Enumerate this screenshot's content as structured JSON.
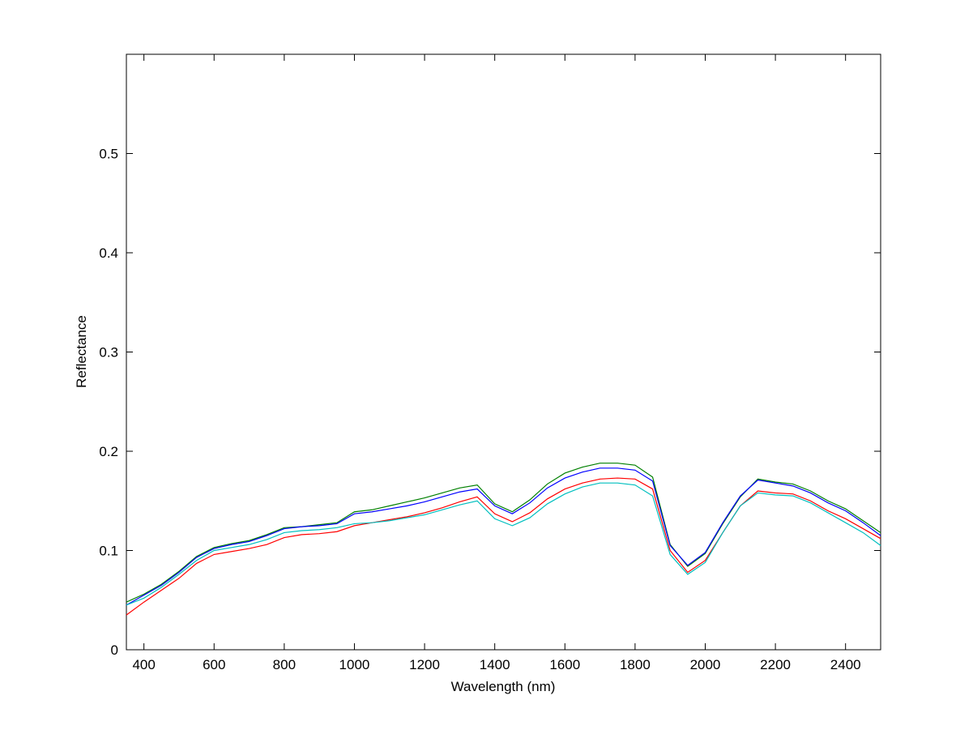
{
  "chart_data": {
    "type": "line",
    "xlabel": "Wavelength (nm)",
    "ylabel": "Reflectance",
    "x": [
      350,
      400,
      450,
      500,
      550,
      600,
      650,
      700,
      750,
      800,
      850,
      900,
      950,
      1000,
      1050,
      1100,
      1150,
      1200,
      1250,
      1300,
      1350,
      1400,
      1450,
      1500,
      1550,
      1600,
      1650,
      1700,
      1750,
      1800,
      1850,
      1900,
      1950,
      2000,
      2050,
      2100,
      2150,
      2200,
      2250,
      2300,
      2350,
      2400,
      2450,
      2500
    ],
    "series": [
      {
        "color": "#008000",
        "values": [
          0.048,
          0.056,
          0.066,
          0.079,
          0.094,
          0.103,
          0.107,
          0.11,
          0.116,
          0.123,
          0.124,
          0.126,
          0.128,
          0.139,
          0.141,
          0.145,
          0.149,
          0.153,
          0.158,
          0.163,
          0.166,
          0.147,
          0.139,
          0.151,
          0.167,
          0.178,
          0.184,
          0.188,
          0.188,
          0.186,
          0.174,
          0.106,
          0.084,
          0.097,
          0.127,
          0.154,
          0.172,
          0.169,
          0.167,
          0.16,
          0.15,
          0.142,
          0.13,
          0.118
        ]
      },
      {
        "color": "#0000ff",
        "values": [
          0.045,
          0.055,
          0.065,
          0.078,
          0.093,
          0.102,
          0.106,
          0.109,
          0.115,
          0.122,
          0.124,
          0.125,
          0.127,
          0.137,
          0.139,
          0.142,
          0.145,
          0.149,
          0.154,
          0.159,
          0.162,
          0.145,
          0.137,
          0.148,
          0.163,
          0.173,
          0.179,
          0.183,
          0.183,
          0.181,
          0.17,
          0.105,
          0.085,
          0.098,
          0.128,
          0.155,
          0.171,
          0.168,
          0.165,
          0.158,
          0.148,
          0.14,
          0.128,
          0.115
        ]
      },
      {
        "color": "#ff0000",
        "values": [
          0.035,
          0.048,
          0.06,
          0.072,
          0.087,
          0.096,
          0.099,
          0.102,
          0.106,
          0.113,
          0.116,
          0.117,
          0.119,
          0.125,
          0.128,
          0.131,
          0.134,
          0.138,
          0.143,
          0.149,
          0.154,
          0.137,
          0.129,
          0.138,
          0.152,
          0.162,
          0.168,
          0.172,
          0.173,
          0.172,
          0.162,
          0.1,
          0.078,
          0.09,
          0.118,
          0.145,
          0.16,
          0.158,
          0.157,
          0.15,
          0.14,
          0.132,
          0.122,
          0.112
        ]
      },
      {
        "color": "#00bfbf",
        "values": [
          0.045,
          0.052,
          0.063,
          0.076,
          0.09,
          0.1,
          0.103,
          0.106,
          0.111,
          0.118,
          0.12,
          0.121,
          0.123,
          0.127,
          0.128,
          0.13,
          0.133,
          0.136,
          0.141,
          0.146,
          0.15,
          0.132,
          0.125,
          0.133,
          0.147,
          0.157,
          0.164,
          0.168,
          0.168,
          0.166,
          0.155,
          0.096,
          0.076,
          0.088,
          0.118,
          0.145,
          0.158,
          0.156,
          0.155,
          0.148,
          0.138,
          0.128,
          0.118,
          0.105
        ]
      }
    ],
    "xlim": [
      350,
      2500
    ],
    "xticks": [
      400,
      600,
      800,
      1000,
      1200,
      1400,
      1600,
      1800,
      2000,
      2200,
      2400
    ],
    "ylim": [
      0,
      0.6
    ],
    "yticks": [
      0,
      0.1,
      0.2,
      0.3,
      0.4,
      0.5
    ],
    "grid": false
  }
}
